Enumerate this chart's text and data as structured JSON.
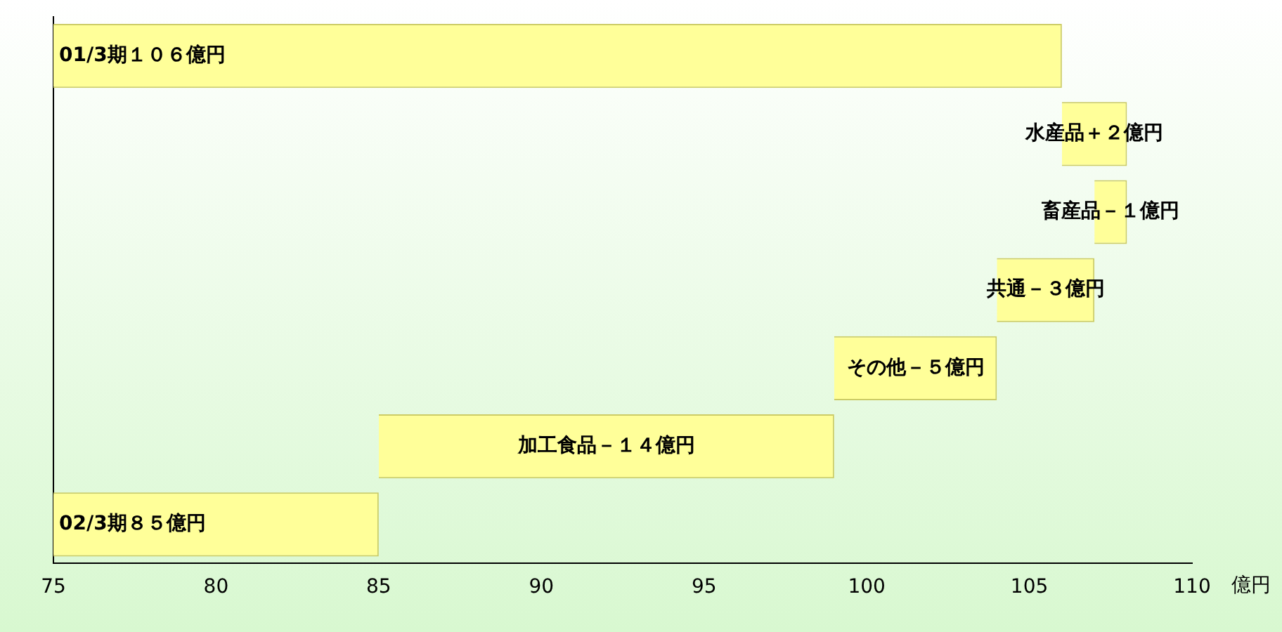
{
  "chart_data": {
    "type": "bar",
    "orientation": "horizontal",
    "xlabel": "億円",
    "categories": [
      null,
      null,
      null,
      null,
      null,
      null,
      null
    ],
    "values": [
      106,
      2,
      -1,
      -3,
      -5,
      -14,
      85
    ],
    "base": [
      0,
      106,
      108,
      107,
      104,
      99,
      0
    ],
    "color": "#ffff99",
    "value_labels": [
      "01/3期１０６億円",
      "水産品＋２億円",
      "畜産品－１億円",
      "共通－３億円",
      "その他－５億円",
      "加工食品－１４億円",
      "02/3期８５億円"
    ],
    "xlim": [
      75,
      110
    ],
    "xticks": [
      75,
      80,
      85,
      90,
      95,
      100,
      105,
      110
    ],
    "grid": false,
    "legend": false,
    "tick_labels": "x"
  }
}
